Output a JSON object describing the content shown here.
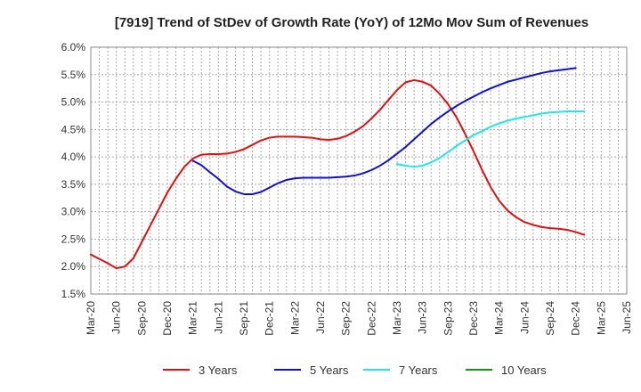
{
  "chart_data": {
    "type": "line",
    "title": "[7919]  Trend of StDev of Growth Rate (YoY) of 12Mo Mov Sum of Revenues",
    "xlabel": "",
    "ylabel": "",
    "x_ticks": [
      "Mar-20",
      "Jun-20",
      "Sep-20",
      "Dec-20",
      "Mar-21",
      "Jun-21",
      "Sep-21",
      "Dec-21",
      "Mar-22",
      "Jun-22",
      "Sep-22",
      "Dec-22",
      "Mar-23",
      "Jun-23",
      "Sep-23",
      "Dec-23",
      "Mar-24",
      "Jun-24",
      "Sep-24",
      "Dec-24",
      "Mar-25",
      "Jun-25"
    ],
    "y_ticks": [
      "1.5%",
      "2.0%",
      "2.5%",
      "3.0%",
      "3.5%",
      "4.0%",
      "4.5%",
      "5.0%",
      "5.5%",
      "6.0%"
    ],
    "ylim": [
      1.5,
      6.0
    ],
    "y_unit": "%",
    "grid": true,
    "legend_position": "bottom",
    "series": [
      {
        "name": "3 Years",
        "color": "#dd1111",
        "start_index": 0,
        "values": [
          2.22,
          2.14,
          2.06,
          1.97,
          2.0,
          2.15,
          2.45,
          2.75,
          3.05,
          3.35,
          3.6,
          3.82,
          3.97,
          4.04,
          4.05,
          4.05,
          4.06,
          4.09,
          4.14,
          4.22,
          4.3,
          4.35,
          4.37,
          4.37,
          4.37,
          4.36,
          4.35,
          4.32,
          4.31,
          4.33,
          4.38,
          4.46,
          4.56,
          4.7,
          4.86,
          5.04,
          5.22,
          5.36,
          5.4,
          5.37,
          5.3,
          5.15,
          4.96,
          4.72,
          4.42,
          4.1,
          3.76,
          3.45,
          3.2,
          3.02,
          2.9,
          2.81,
          2.76,
          2.72,
          2.7,
          2.69,
          2.67,
          2.63,
          2.58
        ]
      },
      {
        "name": "5 Years",
        "color": "#1111cc",
        "start_index": 12,
        "values": [
          3.93,
          3.85,
          3.72,
          3.6,
          3.46,
          3.37,
          3.32,
          3.32,
          3.36,
          3.44,
          3.52,
          3.58,
          3.61,
          3.62,
          3.62,
          3.62,
          3.62,
          3.63,
          3.64,
          3.66,
          3.7,
          3.76,
          3.84,
          3.94,
          4.06,
          4.18,
          4.32,
          4.46,
          4.6,
          4.72,
          4.83,
          4.93,
          5.02,
          5.1,
          5.18,
          5.25,
          5.31,
          5.37,
          5.41,
          5.45,
          5.49,
          5.53,
          5.56,
          5.58,
          5.6,
          5.62
        ]
      },
      {
        "name": "7 Years",
        "color": "#22e6e6",
        "start_index": 36,
        "values": [
          3.87,
          3.84,
          3.82,
          3.84,
          3.9,
          3.98,
          4.09,
          4.2,
          4.3,
          4.4,
          4.47,
          4.55,
          4.61,
          4.66,
          4.7,
          4.73,
          4.76,
          4.79,
          4.81,
          4.82,
          4.83,
          4.83,
          4.83
        ]
      },
      {
        "name": "10 Years",
        "color": "#119911",
        "start_index": null,
        "values": []
      }
    ]
  }
}
